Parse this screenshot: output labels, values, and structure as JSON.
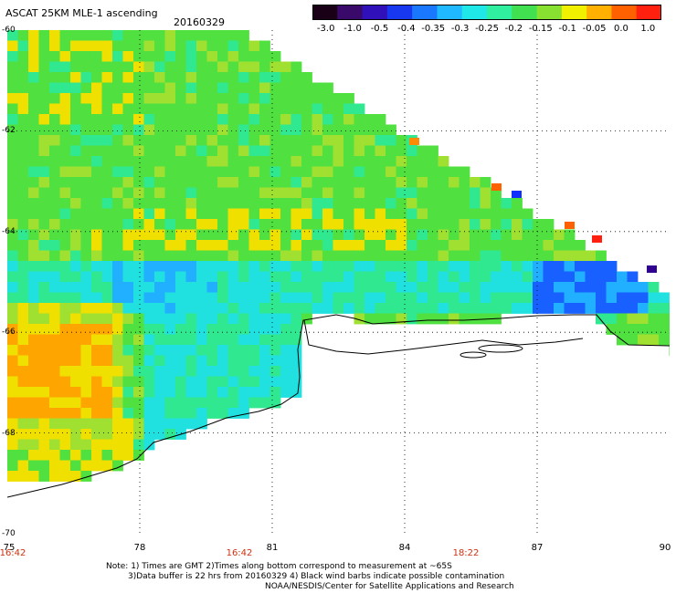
{
  "header": {
    "title": "ASCAT 25KM MLE-1 ascending",
    "date": "20160329"
  },
  "colorbar": {
    "labels": [
      "-3.0",
      "-1.0",
      "-0.5",
      "-0.4",
      "-0.35",
      "-0.3",
      "-0.25",
      "-0.2",
      "-0.15",
      "-0.1",
      "-0.05",
      "0.0",
      "1.0"
    ],
    "colors": [
      "#1a0016",
      "#3a0a6a",
      "#3010b8",
      "#1838f0",
      "#1a78ff",
      "#20b8ff",
      "#20e8e8",
      "#30f0a0",
      "#40e050",
      "#88e030",
      "#f0f000",
      "#ffb000",
      "#ff6000",
      "#ff2010"
    ]
  },
  "axes": {
    "lat_labels": [
      "-60",
      "-62",
      "-64",
      "-66",
      "-68",
      "-70"
    ],
    "lon_labels": [
      "75",
      "78",
      "81",
      "84",
      "87",
      "90"
    ],
    "time_labels": [
      "16:42",
      "16:42",
      "18:22"
    ]
  },
  "notes": {
    "line1": "Note: 1) Times are GMT 2)Times along bottom correspond to measurement at ~65S",
    "line2": "3)Data buffer is 22 hrs from 20160329 4) Black wind barbs indicate possible contamination",
    "line3": "NOAA/NESDIS/Center for Satellite Applications and Research"
  }
}
